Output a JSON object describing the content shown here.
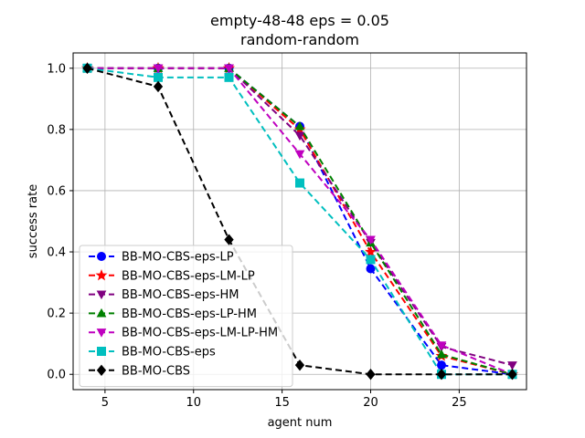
{
  "chart_data": {
    "type": "line",
    "title_line1": "empty-48-48    eps = 0.05",
    "title_line2": "random-random",
    "xlabel": "agent num",
    "ylabel": "success rate",
    "xlim": [
      3.2,
      28.8
    ],
    "ylim": [
      -0.05,
      1.05
    ],
    "xticks": [
      5,
      10,
      15,
      20,
      25
    ],
    "xtick_labels": [
      "5",
      "10",
      "15",
      "20",
      "25"
    ],
    "yticks": [
      0.0,
      0.2,
      0.4,
      0.6,
      0.8,
      1.0
    ],
    "ytick_labels": [
      "0.0",
      "0.2",
      "0.4",
      "0.6",
      "0.8",
      "1.0"
    ],
    "grid": true,
    "legend_position": "lower-left",
    "x": [
      4,
      8,
      12,
      16,
      20,
      24,
      28
    ],
    "series": [
      {
        "name": "BB-MO-CBS-eps-LP",
        "color": "#0000ff",
        "marker": "circle",
        "values": [
          1.0,
          1.0,
          1.0,
          0.81,
          0.345,
          0.03,
          0.0
        ]
      },
      {
        "name": "BB-MO-CBS-eps-LM-LP",
        "color": "#ff0000",
        "marker": "star",
        "values": [
          1.0,
          1.0,
          1.0,
          0.8,
          0.4,
          0.06,
          0.0
        ]
      },
      {
        "name": "BB-MO-CBS-eps-HM",
        "color": "#800080",
        "marker": "triangle-down",
        "values": [
          1.0,
          1.0,
          1.0,
          0.78,
          0.43,
          0.09,
          0.03
        ]
      },
      {
        "name": "BB-MO-CBS-eps-LP-HM",
        "color": "#008000",
        "marker": "triangle-up",
        "values": [
          1.0,
          1.0,
          1.0,
          0.81,
          0.43,
          0.065,
          0.0
        ]
      },
      {
        "name": "BB-MO-CBS-eps-LM-LP-HM",
        "color": "#bf00bf",
        "marker": "triangle-down",
        "values": [
          1.0,
          1.0,
          1.0,
          0.72,
          0.44,
          0.095,
          0.0
        ]
      },
      {
        "name": "BB-MO-CBS-eps",
        "color": "#00bfbf",
        "marker": "square",
        "values": [
          1.0,
          0.97,
          0.97,
          0.625,
          0.375,
          0.0,
          0.0
        ]
      },
      {
        "name": "BB-MO-CBS",
        "color": "#000000",
        "marker": "diamond",
        "values": [
          1.0,
          0.94,
          0.44,
          0.03,
          0.0,
          0.0,
          0.0
        ]
      }
    ]
  }
}
